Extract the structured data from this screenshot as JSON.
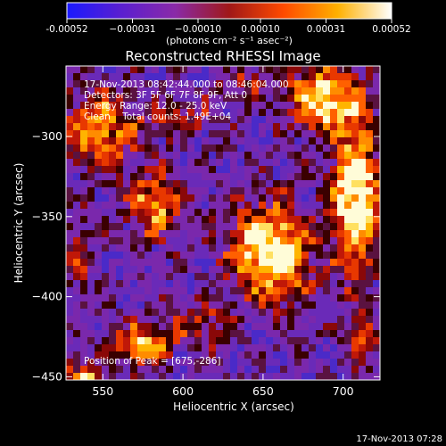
{
  "chart_data": {
    "type": "heatmap",
    "title": "Reconstructed RHESSI Image",
    "xlabel": "Heliocentric X (arcsec)",
    "ylabel": "Heliocentric Y (arcsec)",
    "xlim": [
      527,
      723
    ],
    "ylim": [
      -452,
      -256
    ],
    "x_ticks": [
      550,
      600,
      650,
      700
    ],
    "y_ticks": [
      -300,
      -350,
      -400,
      -450
    ],
    "colorbar": {
      "units": "(photons cm⁻² s⁻¹ asec⁻²)",
      "range": [
        -0.00052,
        0.00052
      ],
      "tick_values": [
        -0.00052,
        -0.00031,
        -0.0001,
        0.0001,
        0.00031,
        0.00052
      ],
      "tick_labels": [
        "-0.00052",
        "−0.00031",
        "−0.00010",
        "0.00010",
        "0.00031",
        "0.00052"
      ],
      "colors": [
        "#1a1aff",
        "#5a1fd0",
        "#8a2aa8",
        "#a01818",
        "#ff4a00",
        "#ffb000",
        "#ffffff"
      ]
    },
    "annotations": [
      "17-Nov-2013 08:42:44.000 to 08:46:04.000",
      "Detectors: 3F 5F 6F 7F 8F 9F, Att 0",
      "Energy Range: 12.0 - 25.0 keV",
      "Clean    Total counts: 1.49E+04"
    ],
    "peak_label": "Position of Peak = [675,-286]",
    "peak": {
      "x": 675,
      "y": -286
    },
    "sources": [
      {
        "x": 655,
        "y": -372,
        "amp": 1.0,
        "sx": 17,
        "sy": 20
      },
      {
        "x": 708,
        "y": -338,
        "amp": 1.0,
        "sx": 10,
        "sy": 32
      },
      {
        "x": 688,
        "y": -276,
        "amp": 0.85,
        "sx": 16,
        "sy": 14
      },
      {
        "x": 582,
        "y": -342,
        "amp": 0.65,
        "sx": 12,
        "sy": 14
      },
      {
        "x": 548,
        "y": -296,
        "amp": 0.65,
        "sx": 16,
        "sy": 16
      },
      {
        "x": 575,
        "y": -430,
        "amp": 0.75,
        "sx": 12,
        "sy": 9
      },
      {
        "x": 538,
        "y": -450,
        "amp": 0.6,
        "sx": 10,
        "sy": 7
      },
      {
        "x": 612,
        "y": -418,
        "amp": 0.45,
        "sx": 12,
        "sy": 9
      },
      {
        "x": 598,
        "y": -290,
        "amp": 0.35,
        "sx": 18,
        "sy": 8
      },
      {
        "x": 535,
        "y": -372,
        "amp": 0.35,
        "sx": 7,
        "sy": 18
      },
      {
        "x": 713,
        "y": -425,
        "amp": 0.4,
        "sx": 7,
        "sy": 14
      },
      {
        "x": 640,
        "y": -268,
        "amp": 0.3,
        "sx": 12,
        "sy": 8
      }
    ]
  },
  "footer": {
    "timestamp": "17-Nov-2013 07:28"
  }
}
